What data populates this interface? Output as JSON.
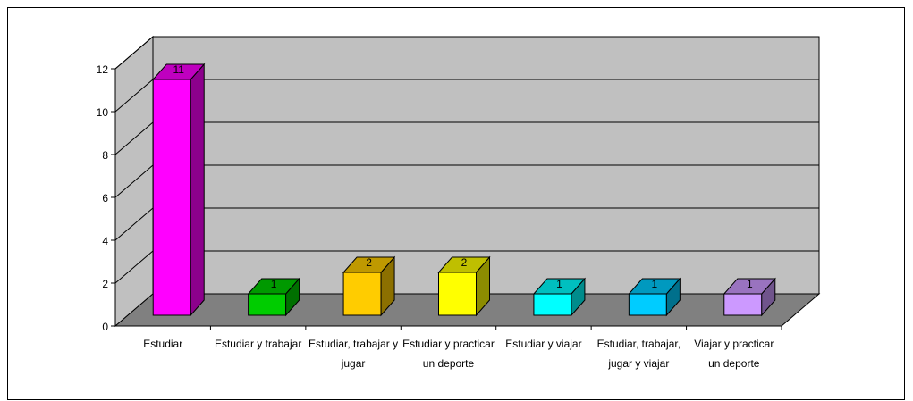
{
  "chart_data": {
    "type": "bar",
    "title": "",
    "xlabel": "",
    "ylabel": "",
    "categories": [
      "Estudiar",
      "Estudiar y trabajar",
      "Estudiar, trabajar y jugar",
      "Estudiar y practicar un deporte",
      "Estudiar y viajar",
      "Estudiar, trabajar, jugar y viajar",
      "Viajar y practicar un deporte"
    ],
    "category_lines": [
      [
        "Estudiar"
      ],
      [
        "Estudiar y trabajar"
      ],
      [
        "Estudiar, trabajar y",
        "jugar"
      ],
      [
        "Estudiar y practicar",
        "un deporte"
      ],
      [
        "Estudiar y viajar"
      ],
      [
        "Estudiar, trabajar,",
        "jugar y viajar"
      ],
      [
        "Viajar y practicar",
        "un deporte"
      ]
    ],
    "values": [
      11,
      1,
      2,
      2,
      1,
      1,
      1
    ],
    "data_labels": [
      "11",
      "1",
      "2",
      "2",
      "1",
      "1",
      "1"
    ],
    "ylim": [
      0,
      12
    ],
    "yticks": [
      0,
      2,
      4,
      6,
      8,
      10,
      12
    ],
    "grid": true,
    "three_d": true,
    "bar_colors": [
      "#ff00ff",
      "#00cc00",
      "#ffcc00",
      "#ffff00",
      "#00ffff",
      "#00ccff",
      "#cc99ff"
    ],
    "wall_color": "#c0c0c0",
    "floor_color": "#808080"
  }
}
